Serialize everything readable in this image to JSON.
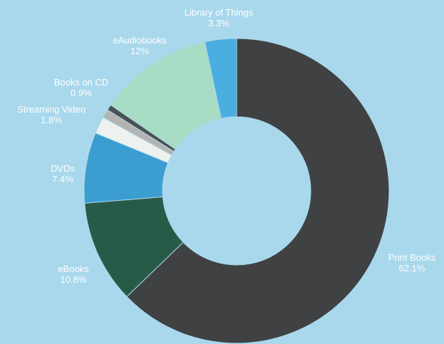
{
  "chart_data": {
    "type": "pie",
    "donut": true,
    "title": "",
    "colors": {
      "background": "#a9d8ec",
      "label_text": "#ffffff"
    },
    "slices": [
      {
        "name": "Print Books",
        "value": 62.1,
        "percent_label": "62.1%",
        "color": "#3f4143"
      },
      {
        "name": "eBooks",
        "value": 10.8,
        "percent_label": "10.8%",
        "color": "#285a48"
      },
      {
        "name": "DVDs",
        "value": 7.4,
        "percent_label": "7.4%",
        "color": "#3b9dd0"
      },
      {
        "name": "Streaming Video",
        "value": 1.8,
        "percent_label": "1.8%",
        "color": "#eef2ef"
      },
      {
        "name": "Books on CD",
        "value": 0.9,
        "percent_label": "0.9%",
        "color": "#b3b4b1"
      },
      {
        "name": "",
        "value": 0.6,
        "percent_label": "",
        "color": "#4a5150"
      },
      {
        "name": "eAudiobooks",
        "value": 12,
        "percent_label": "12%",
        "color": "#a8dcc5"
      },
      {
        "name": "Library of Things",
        "value": 3.3,
        "percent_label": "3.3%",
        "color": "#4aaee0"
      }
    ]
  }
}
